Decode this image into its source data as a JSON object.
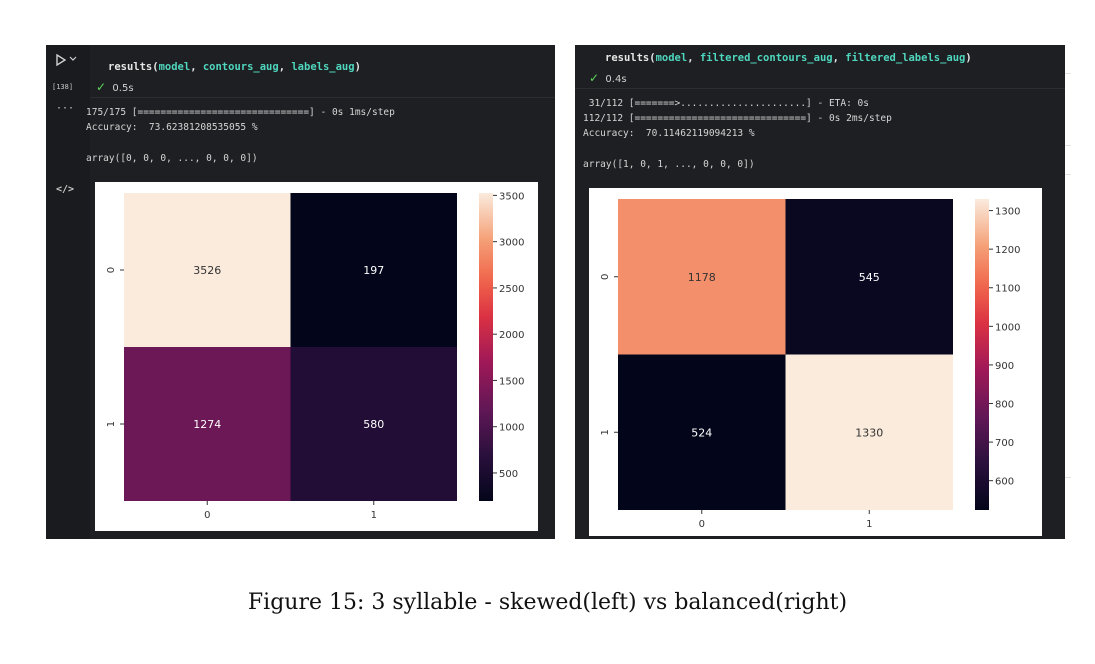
{
  "left": {
    "gutter": {
      "run_icon": "play-icon",
      "chevron_icon": "chevron-down-icon",
      "exec_count": "[138]",
      "ellipsis": "···",
      "code_icon": "code-icon"
    },
    "code": {
      "func": "results(",
      "a1": "model",
      "s1": ", ",
      "a2": "contours_aug",
      "s2": ", ",
      "a3": "labels_aug",
      "end": ")"
    },
    "status": {
      "check": "✓",
      "time": "0.5s"
    },
    "output": {
      "line1": "175/175 [==============================] - 0s 1ms/step",
      "line2": "Accuracy:  73.62381208535055 %",
      "line3": "array([0, 0, 0, ..., 0, 0, 0])"
    }
  },
  "right": {
    "code": {
      "func": "results(",
      "a1": "model",
      "s1": ", ",
      "a2": "filtered_contours_aug",
      "s2": ", ",
      "a3": "filtered_labels_aug",
      "end": ")"
    },
    "status": {
      "check": "✓",
      "time": "0.4s"
    },
    "output": {
      "line1": " 31/112 [=======>......................] - ETA: 0s",
      "line2": "112/112 [==============================] - 0s 2ms/step",
      "line3": "Accuracy:  70.11462119094213 %",
      "line4": "array([1, 0, 1, ..., 0, 0, 0])"
    }
  },
  "chart_data": [
    {
      "type": "heatmap",
      "x_tick_labels": [
        "0",
        "1"
      ],
      "y_tick_labels": [
        "0",
        "1"
      ],
      "values": [
        [
          3526,
          197
        ],
        [
          1274,
          580
        ]
      ],
      "colorbar": {
        "range": [
          197,
          3526
        ],
        "ticks": [
          500,
          1000,
          1500,
          2000,
          2500,
          3000,
          3500
        ],
        "colormap": "rocket"
      }
    },
    {
      "type": "heatmap",
      "x_tick_labels": [
        "0",
        "1"
      ],
      "y_tick_labels": [
        "0",
        "1"
      ],
      "values": [
        [
          1178,
          545
        ],
        [
          524,
          1330
        ]
      ],
      "colorbar": {
        "range": [
          524,
          1330
        ],
        "ticks": [
          600,
          700,
          800,
          900,
          1000,
          1100,
          1200,
          1300
        ],
        "colormap": "rocket"
      }
    }
  ],
  "caption": "Figure 15: 3 syllable - skewed(left) vs balanced(right)"
}
